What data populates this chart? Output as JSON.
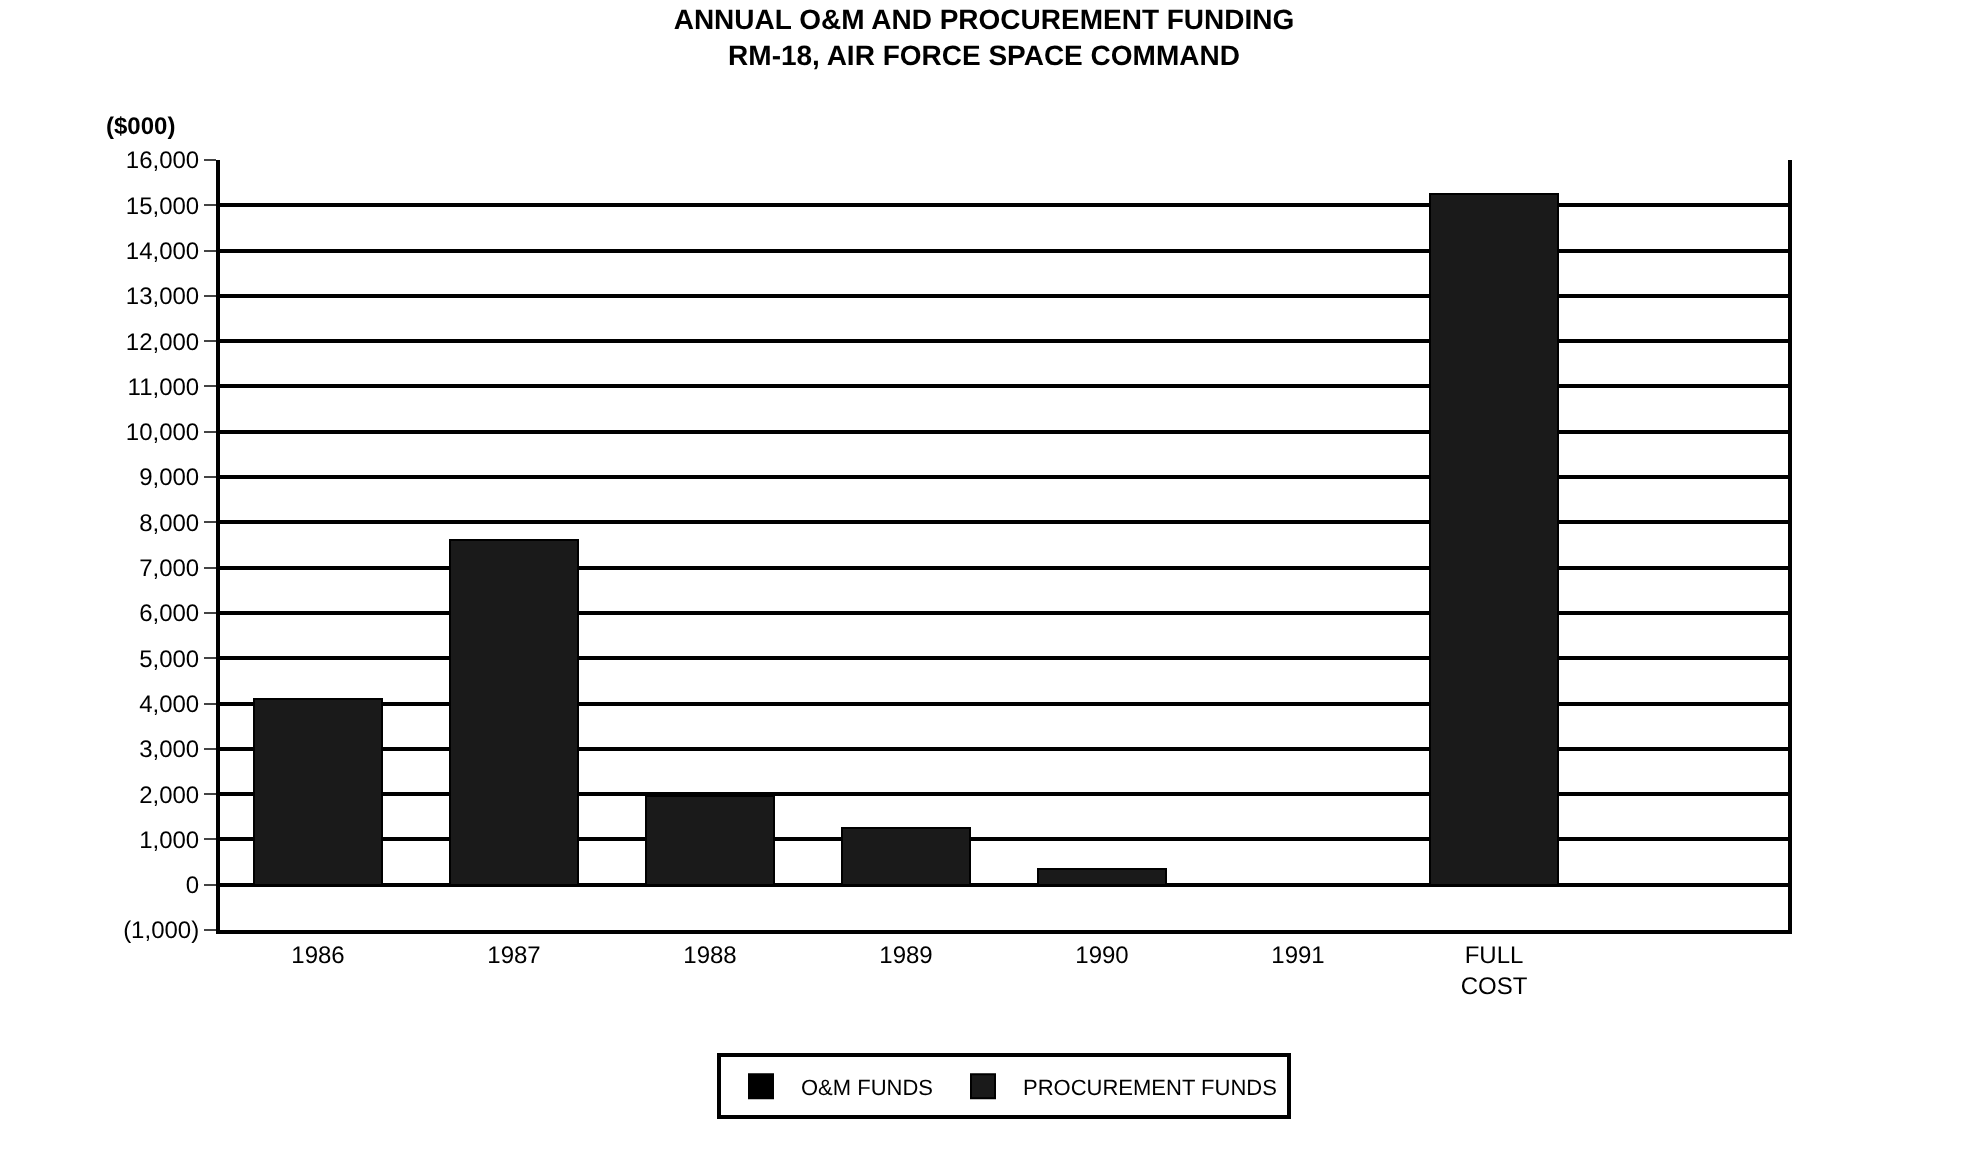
{
  "chart_data": {
    "type": "bar",
    "title": "ANNUAL O&M AND PROCUREMENT FUNDING",
    "subtitle": "RM-18, AIR FORCE SPACE COMMAND",
    "ylabel": "($000)",
    "categories": [
      "1986",
      "1987",
      "1988",
      "1989",
      "1990",
      "1991",
      "FULL\nCOST"
    ],
    "stacked": true,
    "series": [
      {
        "name": "PROCUREMENT FUNDS",
        "color": "#1a1a1a",
        "values": [
          4100,
          7600,
          1950,
          1250,
          350,
          0,
          15250
        ]
      },
      {
        "name": "O&M FUNDS",
        "color": "#000000",
        "values": [
          0,
          0,
          0,
          0,
          0,
          0,
          0
        ]
      }
    ],
    "ylim": [
      -1000,
      16000
    ],
    "yticks": [
      {
        "value": -1000,
        "label": "(1,000)"
      },
      0,
      {
        "value": 1000,
        "label": "1,000"
      },
      {
        "value": 2000,
        "label": "2,000"
      },
      {
        "value": 3000,
        "label": "3,000"
      },
      {
        "value": 4000,
        "label": "4,000"
      },
      {
        "value": 5000,
        "label": "5,000"
      },
      {
        "value": 6000,
        "label": "6,000"
      },
      {
        "value": 7000,
        "label": "7,000"
      },
      {
        "value": 8000,
        "label": "8,000"
      },
      {
        "value": 9000,
        "label": "9,000"
      },
      {
        "value": 10000,
        "label": "10,000"
      },
      {
        "value": 11000,
        "label": "11,000"
      },
      {
        "value": 12000,
        "label": "12,000"
      },
      {
        "value": 13000,
        "label": "13,000"
      },
      {
        "value": 14000,
        "label": "14,000"
      },
      {
        "value": 15000,
        "label": "15,000"
      },
      {
        "value": 16000,
        "label": "16,000"
      }
    ],
    "grid": "y",
    "legend": "bottom"
  }
}
